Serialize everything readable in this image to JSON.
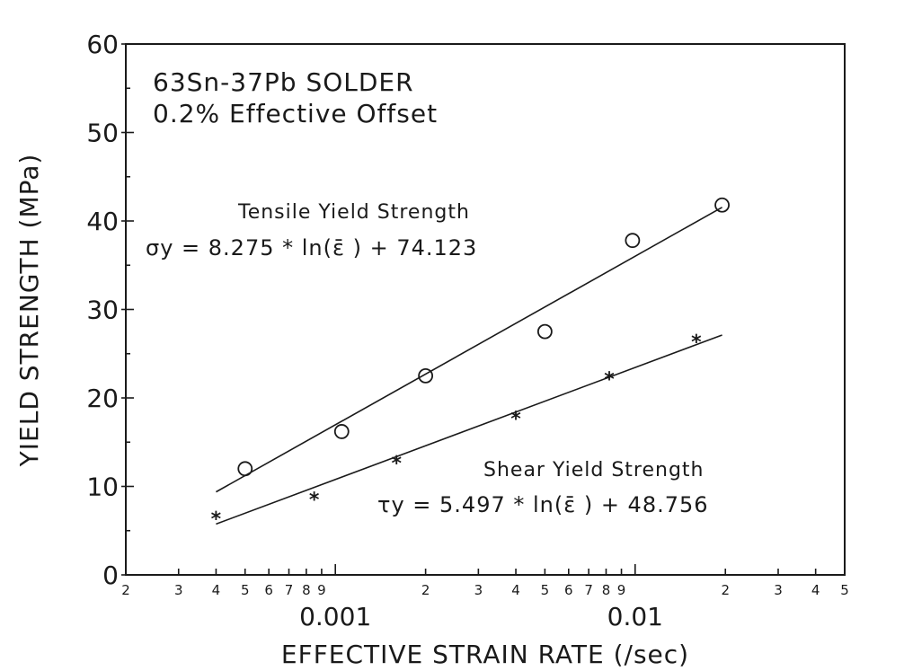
{
  "chart_data": {
    "type": "scatter",
    "title": [
      "63Sn-37Pb SOLDER",
      "0.2% Effective Offset"
    ],
    "xlabel": "EFFECTIVE STRAIN RATE (/sec)",
    "ylabel": "YIELD STRENGTH (MPa)",
    "xscale": "log",
    "xlim": [
      0.0002,
      0.05
    ],
    "ylim": [
      0,
      60
    ],
    "yticks": [
      0,
      10,
      20,
      30,
      40,
      50,
      60
    ],
    "x_minor_ticks": [
      {
        "value": 0.0002,
        "label": "2"
      },
      {
        "value": 0.0003,
        "label": "3"
      },
      {
        "value": 0.0004,
        "label": "4"
      },
      {
        "value": 0.0005,
        "label": "5"
      },
      {
        "value": 0.0006,
        "label": "6"
      },
      {
        "value": 0.0007,
        "label": "7"
      },
      {
        "value": 0.0008,
        "label": "8"
      },
      {
        "value": 0.0009,
        "label": "9"
      },
      {
        "value": 0.002,
        "label": "2"
      },
      {
        "value": 0.003,
        "label": "3"
      },
      {
        "value": 0.004,
        "label": "4"
      },
      {
        "value": 0.005,
        "label": "5"
      },
      {
        "value": 0.006,
        "label": "6"
      },
      {
        "value": 0.007,
        "label": "7"
      },
      {
        "value": 0.008,
        "label": "8"
      },
      {
        "value": 0.009,
        "label": "9"
      },
      {
        "value": 0.02,
        "label": "2"
      },
      {
        "value": 0.03,
        "label": "3"
      },
      {
        "value": 0.04,
        "label": "4"
      },
      {
        "value": 0.05,
        "label": "5"
      }
    ],
    "x_major_ticks": [
      {
        "value": 0.001,
        "label": "0.001"
      },
      {
        "value": 0.01,
        "label": "0.01"
      }
    ],
    "grid": false,
    "series": [
      {
        "name": "Tensile Yield Strength",
        "equation": "σy = 8.275 * ln(ε̄ ) + 74.123",
        "marker": "circle",
        "x": [
          0.0005,
          0.00105,
          0.002,
          0.005,
          0.0098,
          0.0195
        ],
        "y": [
          12,
          16.2,
          22.5,
          27.5,
          37.8,
          41.8
        ],
        "fit": {
          "slope": 8.275,
          "intercept": 74.123,
          "xrange": [
            0.0004,
            0.0195
          ]
        }
      },
      {
        "name": "Shear Yield Strength",
        "equation": "τy = 5.497 * ln(ε̄ ) + 48.756",
        "marker": "star",
        "x": [
          0.0004,
          0.00085,
          0.0016,
          0.004,
          0.0082,
          0.016
        ],
        "y": [
          6.5,
          8.7,
          12.8,
          17.8,
          22.3,
          26.5
        ],
        "fit": {
          "slope": 5.497,
          "intercept": 48.756,
          "xrange": [
            0.0004,
            0.0195
          ]
        }
      }
    ]
  }
}
